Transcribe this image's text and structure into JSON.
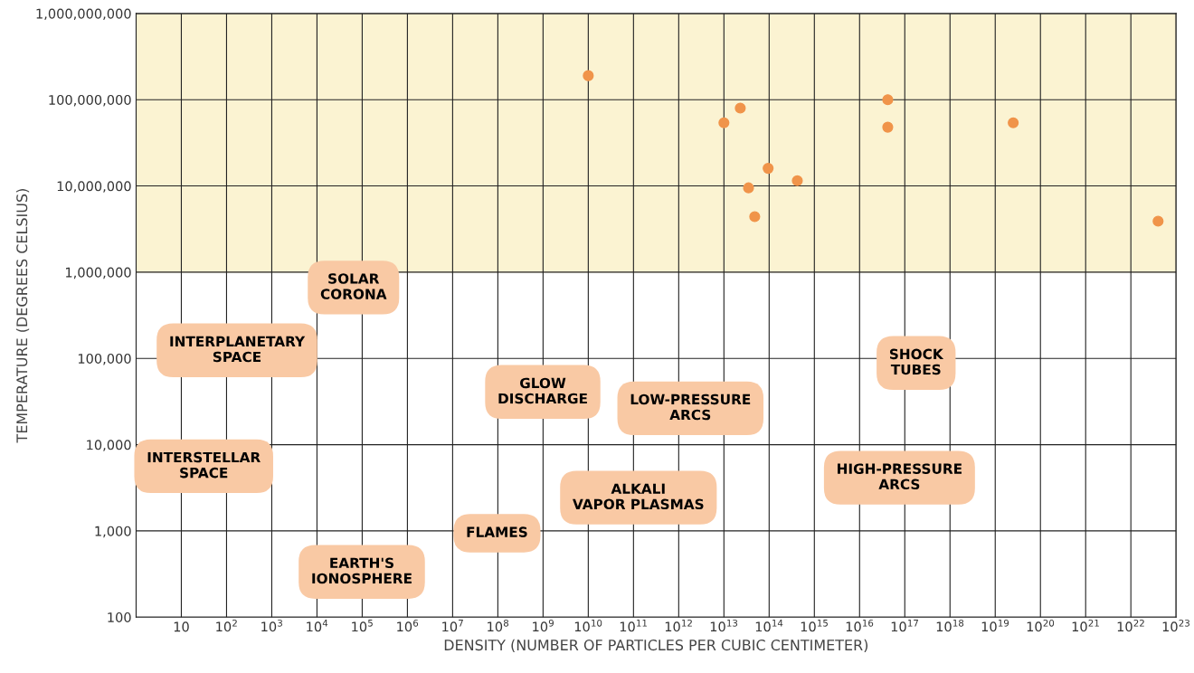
{
  "chart_data": {
    "type": "scatter",
    "xlabel": "DENSITY (NUMBER OF PARTICLES PER CUBIC CENTIMETER)",
    "ylabel": "TEMPERATURE (DEGREES CELSIUS)",
    "log": "xy",
    "grid": true,
    "marker": "circle",
    "xlim": [
      1,
      1e+23
    ],
    "ylim": [
      100,
      1000000000
    ],
    "xticks": [
      {
        "value": 10,
        "label": "10"
      },
      {
        "value": 100.0,
        "label": "10$^{2}$"
      },
      {
        "value": 1000.0,
        "label": "10$^{3}$"
      },
      {
        "value": 10000.0,
        "label": "10$^{4}$"
      },
      {
        "value": 100000.0,
        "label": "10$^{5}$"
      },
      {
        "value": 1000000.0,
        "label": "10$^{6}$"
      },
      {
        "value": 10000000.0,
        "label": "10$^{7}$"
      },
      {
        "value": 100000000.0,
        "label": "10$^{8}$"
      },
      {
        "value": 1000000000.0,
        "label": "10$^{9}$"
      },
      {
        "value": 10000000000.0,
        "label": "10$^{10}$"
      },
      {
        "value": 100000000000.0,
        "label": "10$^{11}$"
      },
      {
        "value": 1000000000000.0,
        "label": "10$^{12}$"
      },
      {
        "value": 10000000000000.0,
        "label": "10$^{13}$"
      },
      {
        "value": 100000000000000.0,
        "label": "10$^{14}$"
      },
      {
        "value": 1000000000000000.0,
        "label": "10$^{15}$"
      },
      {
        "value": 1e+16,
        "label": "10$^{16}$"
      },
      {
        "value": 1e+17,
        "label": "10$^{17}$"
      },
      {
        "value": 1e+18,
        "label": "10$^{18}$"
      },
      {
        "value": 1e+19,
        "label": "10$^{19}$"
      },
      {
        "value": 1e+20,
        "label": "10$^{20}$"
      },
      {
        "value": 1e+21,
        "label": "10$^{21}$"
      },
      {
        "value": 1e+22,
        "label": "10$^{22}$"
      },
      {
        "value": 1e+23,
        "label": "10$^{23}$"
      }
    ],
    "yticks": [
      {
        "value": 100,
        "label": "100"
      },
      {
        "value": 1000,
        "label": "1,000"
      },
      {
        "value": 10000,
        "label": "10,000"
      },
      {
        "value": 100000,
        "label": "100,000"
      },
      {
        "value": 1000000,
        "label": "1,000,000"
      },
      {
        "value": 10000000,
        "label": "10,000,000"
      },
      {
        "value": 100000000,
        "label": "100,000,000"
      },
      {
        "value": 1000000000,
        "label": "1,000,000,000"
      }
    ],
    "bands": [
      {
        "axis": "y",
        "from": 1000000,
        "to": 1000000000,
        "color": "#fbf3d2"
      }
    ],
    "series": [
      {
        "color": "#f0944a",
        "x": [
          10000000000.0,
          10000000000000.0,
          23000000000000.0,
          95000000000000.0,
          35000000000000.0,
          48000000000000.0,
          420000000000000.0,
          4.2e+16,
          4.2e+16,
          2.5e+19,
          4e+22
        ],
        "values": [
          190000000,
          54000000,
          80000000,
          16000000,
          9500000,
          4400000,
          11500000,
          100000000,
          48000000,
          54000000,
          3900000
        ]
      }
    ],
    "annotations": [
      "SOLAR\nCORONA",
      "INTERPLANETARY\nSPACE",
      "GLOW\nDISCHARGE",
      "LOW-PRESSURE\nARCS",
      "SHOCK\nTUBES",
      "INTERSTELLAR\nSPACE",
      "HIGH-PRESSURE\nARCS",
      "ALKALI\nVAPOR PLASMAS",
      "FLAMES",
      "EARTH'S\nIONOSPHERE"
    ]
  }
}
